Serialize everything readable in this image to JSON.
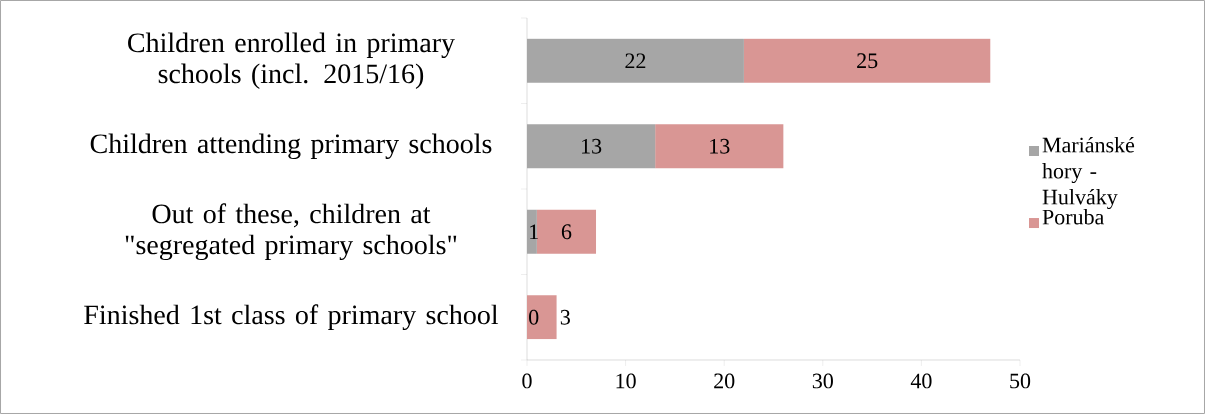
{
  "chart_data": {
    "type": "bar",
    "orientation": "horizontal",
    "stacked": true,
    "categories": [
      "Children enrolled in primary schools (incl. 2015/16)",
      "Children attending primary schools",
      "Out of these, children at \"segregated primary schools\"",
      "Finished 1st class of primary school"
    ],
    "series": [
      {
        "name": "Mariánské hory - Hulváky",
        "color": "#a6a6a6",
        "values": [
          22,
          13,
          1,
          0
        ]
      },
      {
        "name": "Poruba",
        "color": "#d99694",
        "values": [
          25,
          13,
          6,
          3
        ]
      }
    ],
    "xlim": [
      0,
      50
    ],
    "xticks": [
      0,
      10,
      20,
      30,
      40,
      50
    ],
    "data_labels": true,
    "legend": "right",
    "grid": false
  }
}
